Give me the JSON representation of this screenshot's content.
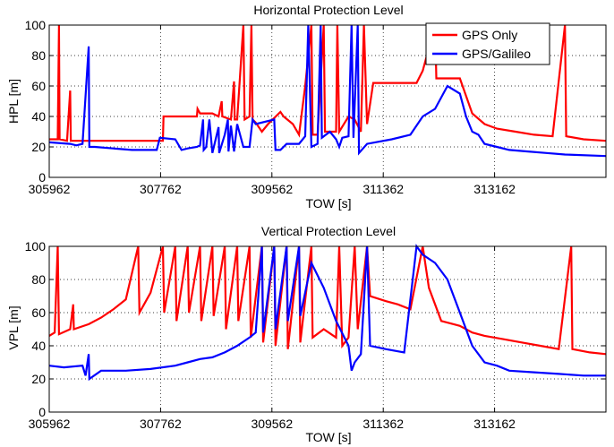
{
  "chart_data": [
    {
      "type": "line",
      "title": "Horizontal Protection Level",
      "xlabel": "TOW [s]",
      "ylabel": "HPL [m]",
      "xlim": [
        305962,
        314962
      ],
      "ylim": [
        0,
        100
      ],
      "xticks": [
        305962,
        307762,
        309562,
        311362,
        313162
      ],
      "yticks": [
        0,
        20,
        40,
        60,
        80,
        100
      ],
      "grid": true,
      "legend": "top-right",
      "colors": {
        "gps_only": "#ff0000",
        "gps_galileo": "#0000ff"
      },
      "series": [
        {
          "name": "GPS Only",
          "color": "#ff0000",
          "points": [
            [
              305962,
              25
            ],
            [
              306100,
              25
            ],
            [
              306120,
              100
            ],
            [
              306130,
              25
            ],
            [
              306250,
              24
            ],
            [
              306300,
              57
            ],
            [
              306310,
              24
            ],
            [
              306600,
              24
            ],
            [
              307000,
              24
            ],
            [
              307500,
              24
            ],
            [
              307800,
              24
            ],
            [
              307810,
              40
            ],
            [
              308200,
              40
            ],
            [
              308350,
              40
            ],
            [
              308360,
              45
            ],
            [
              308400,
              42
            ],
            [
              308600,
              42
            ],
            [
              308700,
              40
            ],
            [
              308750,
              50
            ],
            [
              308760,
              40
            ],
            [
              308900,
              38
            ],
            [
              308950,
              63
            ],
            [
              308960,
              38
            ],
            [
              309000,
              38
            ],
            [
              309100,
              100
            ],
            [
              309120,
              38
            ],
            [
              309200,
              40
            ],
            [
              309230,
              100
            ],
            [
              309250,
              38
            ],
            [
              309300,
              36
            ],
            [
              309400,
              30
            ],
            [
              309500,
              35
            ],
            [
              309700,
              43
            ],
            [
              309750,
              40
            ],
            [
              309900,
              35
            ],
            [
              310000,
              28
            ],
            [
              310100,
              60
            ],
            [
              310200,
              100
            ],
            [
              310220,
              28
            ],
            [
              310300,
              28
            ],
            [
              310400,
              100
            ],
            [
              310420,
              30
            ],
            [
              310600,
              30
            ],
            [
              310620,
              100
            ],
            [
              310650,
              30
            ],
            [
              310800,
              40
            ],
            [
              310900,
              38
            ],
            [
              311000,
              30
            ],
            [
              311050,
              100
            ],
            [
              311100,
              35
            ],
            [
              311200,
              62
            ],
            [
              311400,
              62
            ],
            [
              311900,
              62
            ],
            [
              312000,
              70
            ],
            [
              312200,
              100
            ],
            [
              312220,
              65
            ],
            [
              312600,
              65
            ],
            [
              312800,
              42
            ],
            [
              313000,
              35
            ],
            [
              313200,
              32
            ],
            [
              313500,
              30
            ],
            [
              313800,
              28
            ],
            [
              314100,
              27
            ],
            [
              314300,
              100
            ],
            [
              314320,
              27
            ],
            [
              314600,
              25
            ],
            [
              314962,
              24
            ]
          ]
        },
        {
          "name": "GPS/Galileo",
          "color": "#0000ff",
          "points": [
            [
              305962,
              23
            ],
            [
              306300,
              22
            ],
            [
              306400,
              21
            ],
            [
              306500,
              22
            ],
            [
              306600,
              86
            ],
            [
              306610,
              20
            ],
            [
              306700,
              20
            ],
            [
              307000,
              19
            ],
            [
              307300,
              18
            ],
            [
              307700,
              18
            ],
            [
              307750,
              26
            ],
            [
              308000,
              25
            ],
            [
              308100,
              18
            ],
            [
              308200,
              19
            ],
            [
              308350,
              20
            ],
            [
              308400,
              21
            ],
            [
              308450,
              38
            ],
            [
              308460,
              18
            ],
            [
              308500,
              20
            ],
            [
              308550,
              38
            ],
            [
              308600,
              16
            ],
            [
              308700,
              33
            ],
            [
              308710,
              16
            ],
            [
              308800,
              28
            ],
            [
              308850,
              38
            ],
            [
              308860,
              17
            ],
            [
              308900,
              34
            ],
            [
              308950,
              17
            ],
            [
              309000,
              35
            ],
            [
              309100,
              20
            ],
            [
              309200,
              20
            ],
            [
              309250,
              38
            ],
            [
              309300,
              35
            ],
            [
              309600,
              38
            ],
            [
              309620,
              18
            ],
            [
              309700,
              18
            ],
            [
              309800,
              22
            ],
            [
              310000,
              22
            ],
            [
              310100,
              27
            ],
            [
              310150,
              100
            ],
            [
              310200,
              20
            ],
            [
              310300,
              22
            ],
            [
              310350,
              100
            ],
            [
              310370,
              26
            ],
            [
              310500,
              30
            ],
            [
              310600,
              25
            ],
            [
              310650,
              20
            ],
            [
              310700,
              26
            ],
            [
              310800,
              27
            ],
            [
              310850,
              100
            ],
            [
              310880,
              26
            ],
            [
              310950,
              100
            ],
            [
              310970,
              16
            ],
            [
              311100,
              22
            ],
            [
              311500,
              25
            ],
            [
              311800,
              28
            ],
            [
              312000,
              40
            ],
            [
              312200,
              45
            ],
            [
              312400,
              60
            ],
            [
              312600,
              55
            ],
            [
              312700,
              40
            ],
            [
              312800,
              30
            ],
            [
              312900,
              28
            ],
            [
              313000,
              22
            ],
            [
              313200,
              20
            ],
            [
              313400,
              18
            ],
            [
              313700,
              17
            ],
            [
              314000,
              16
            ],
            [
              314300,
              15
            ],
            [
              314962,
              14
            ]
          ]
        }
      ]
    },
    {
      "type": "line",
      "title": "Vertical Protection Level",
      "xlabel": "TOW [s]",
      "ylabel": "VPL [m]",
      "xlim": [
        305962,
        314962
      ],
      "ylim": [
        0,
        100
      ],
      "xticks": [
        305962,
        307762,
        309562,
        311362,
        313162
      ],
      "yticks": [
        0,
        20,
        40,
        60,
        80,
        100
      ],
      "grid": true,
      "colors": {
        "gps_only": "#ff0000",
        "gps_galileo": "#0000ff"
      },
      "series": [
        {
          "name": "GPS Only",
          "color": "#ff0000",
          "points": [
            [
              305962,
              46
            ],
            [
              306050,
              48
            ],
            [
              306100,
              100
            ],
            [
              306120,
              47
            ],
            [
              306300,
              50
            ],
            [
              306350,
              65
            ],
            [
              306360,
              50
            ],
            [
              306600,
              53
            ],
            [
              306800,
              57
            ],
            [
              307000,
              62
            ],
            [
              307200,
              68
            ],
            [
              307400,
              100
            ],
            [
              307420,
              60
            ],
            [
              307600,
              72
            ],
            [
              307800,
              100
            ],
            [
              307820,
              60
            ],
            [
              308000,
              100
            ],
            [
              308020,
              55
            ],
            [
              308200,
              100
            ],
            [
              308220,
              60
            ],
            [
              308400,
              100
            ],
            [
              308420,
              55
            ],
            [
              308600,
              100
            ],
            [
              308620,
              58
            ],
            [
              308800,
              100
            ],
            [
              308820,
              50
            ],
            [
              309000,
              100
            ],
            [
              309020,
              55
            ],
            [
              309200,
              100
            ],
            [
              309220,
              45
            ],
            [
              309400,
              100
            ],
            [
              309420,
              42
            ],
            [
              309600,
              100
            ],
            [
              309620,
              40
            ],
            [
              309800,
              100
            ],
            [
              309820,
              38
            ],
            [
              310000,
              100
            ],
            [
              310020,
              42
            ],
            [
              310200,
              100
            ],
            [
              310220,
              45
            ],
            [
              310400,
              50
            ],
            [
              310600,
              45
            ],
            [
              310650,
              100
            ],
            [
              310700,
              40
            ],
            [
              310800,
              45
            ],
            [
              310900,
              100
            ],
            [
              310950,
              50
            ],
            [
              311100,
              100
            ],
            [
              311150,
              70
            ],
            [
              311400,
              67
            ],
            [
              311600,
              65
            ],
            [
              311800,
              62
            ],
            [
              312000,
              100
            ],
            [
              312100,
              75
            ],
            [
              312300,
              55
            ],
            [
              312600,
              52
            ],
            [
              312800,
              48
            ],
            [
              313000,
              46
            ],
            [
              313300,
              44
            ],
            [
              313600,
              42
            ],
            [
              313900,
              40
            ],
            [
              314200,
              38
            ],
            [
              314400,
              100
            ],
            [
              314420,
              38
            ],
            [
              314700,
              36
            ],
            [
              314962,
              35
            ]
          ]
        },
        {
          "name": "GPS/Galileo",
          "color": "#0000ff",
          "points": [
            [
              305962,
              28
            ],
            [
              306200,
              27
            ],
            [
              306500,
              28
            ],
            [
              306550,
              22
            ],
            [
              306600,
              35
            ],
            [
              306610,
              20
            ],
            [
              306800,
              25
            ],
            [
              307200,
              25
            ],
            [
              307600,
              26
            ],
            [
              308000,
              28
            ],
            [
              308200,
              30
            ],
            [
              308400,
              32
            ],
            [
              308600,
              33
            ],
            [
              308800,
              36
            ],
            [
              309000,
              40
            ],
            [
              309200,
              45
            ],
            [
              309300,
              48
            ],
            [
              309400,
              100
            ],
            [
              309420,
              48
            ],
            [
              309600,
              100
            ],
            [
              309620,
              50
            ],
            [
              309800,
              100
            ],
            [
              309820,
              55
            ],
            [
              310000,
              100
            ],
            [
              310020,
              58
            ],
            [
              310200,
              90
            ],
            [
              310400,
              75
            ],
            [
              310600,
              55
            ],
            [
              310800,
              40
            ],
            [
              310850,
              25
            ],
            [
              310900,
              30
            ],
            [
              311000,
              35
            ],
            [
              311100,
              100
            ],
            [
              311150,
              40
            ],
            [
              311400,
              38
            ],
            [
              311700,
              36
            ],
            [
              311900,
              100
            ],
            [
              312000,
              95
            ],
            [
              312200,
              90
            ],
            [
              312400,
              80
            ],
            [
              312600,
              60
            ],
            [
              312700,
              50
            ],
            [
              312800,
              40
            ],
            [
              313000,
              30
            ],
            [
              313200,
              28
            ],
            [
              313400,
              25
            ],
            [
              313800,
              24
            ],
            [
              314200,
              23
            ],
            [
              314600,
              22
            ],
            [
              314962,
              22
            ]
          ]
        }
      ]
    }
  ]
}
